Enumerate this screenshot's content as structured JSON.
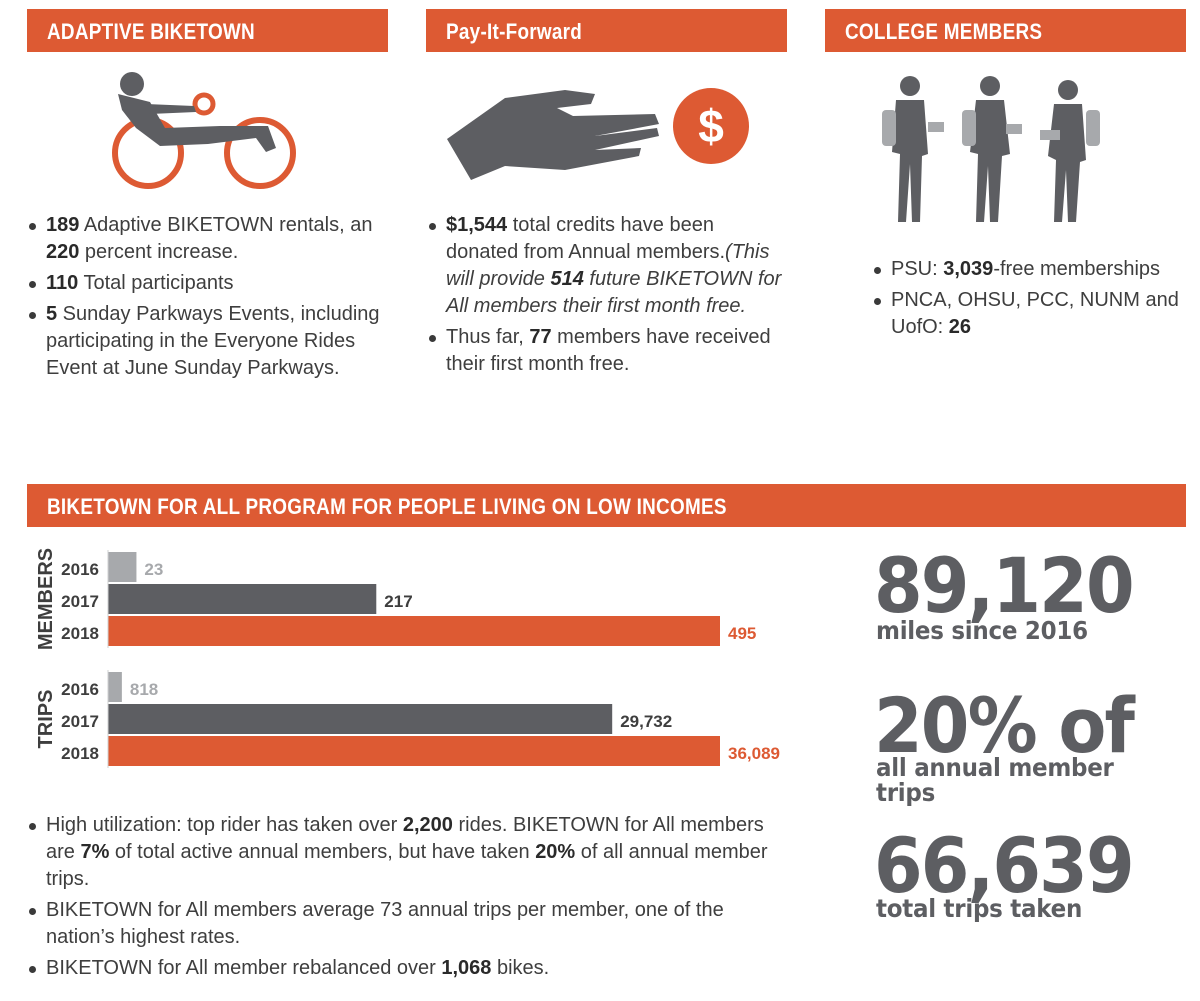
{
  "sections": {
    "adaptive": {
      "title": "ADAPTIVE BIKETOWN",
      "bullets": [
        {
          "b1": "189",
          "t1": " Adaptive BIKETOWN rentals, an ",
          "b2": "220",
          "t2": " percent increase."
        },
        {
          "b1": "110",
          "t1": " Total participants"
        },
        {
          "b1": "5",
          "t1": " Sunday Parkways Events, including participating in the Everyone Rides Event at June Sunday Parkways."
        }
      ]
    },
    "pay_it_forward": {
      "title": "Pay-It-Forward",
      "icon": "hand-dollar-icon",
      "bullet1": {
        "b1": "$1,544",
        "t1": " total credits have been donated from Annual members.",
        "i1": "(This will provide ",
        "ib": "514",
        "i2": " future BIKETOWN for All members their first month free."
      },
      "bullet2": {
        "t0": "Thus far, ",
        "b1": "77",
        "t1": " members have received their first month free."
      }
    },
    "college": {
      "title": "COLLEGE MEMBERS",
      "bullets": [
        {
          "t0": "PSU: ",
          "b1": "3,039",
          "t1": "-free memberships"
        },
        {
          "t0": "PNCA, OHSU, PCC, NUNM and UofO: ",
          "b1": "26"
        }
      ]
    },
    "biketown_for_all": {
      "title": "BIKETOWN FOR ALL PROGRAM FOR PEOPLE LIVING ON LOW INCOMES",
      "bullets": [
        {
          "t0": "High utilization: top rider has taken over ",
          "b1": "2,200",
          "t1": " rides. BIKETOWN for All members are ",
          "b2": "7%",
          "t2": " of total active annual members, but have taken ",
          "b3": "20%",
          "t3": " of all annual member trips."
        },
        {
          "t0": "BIKETOWN for All members average 73 annual trips per member, one of the nation’s highest rates."
        },
        {
          "t0": "BIKETOWN for All member rebalanced over ",
          "b1": "1,068",
          "t1": " bikes."
        }
      ],
      "stats": [
        {
          "value": "89,120",
          "label": "miles since 2016"
        },
        {
          "value": "20% of",
          "label": "all annual member trips"
        },
        {
          "value": "66,639",
          "label": "total trips taken"
        }
      ]
    }
  },
  "colors": {
    "accent": "#dd5a33",
    "dark_gray": "#5d5e62",
    "light_gray": "#a7a9ac",
    "text": "#3e3e3e"
  },
  "chart_data": [
    {
      "type": "bar",
      "orientation": "horizontal",
      "group_label": "MEMBERS",
      "categories": [
        "2016",
        "2017",
        "2018"
      ],
      "values": [
        23,
        217,
        495
      ],
      "value_labels": [
        "23",
        "217",
        "495"
      ],
      "xlim": [
        0,
        495
      ]
    },
    {
      "type": "bar",
      "orientation": "horizontal",
      "group_label": "TRIPS",
      "categories": [
        "2016",
        "2017",
        "2018"
      ],
      "values": [
        818,
        29732,
        36089
      ],
      "value_labels": [
        "818",
        "29,732",
        "36,089"
      ],
      "xlim": [
        0,
        36089
      ]
    }
  ]
}
